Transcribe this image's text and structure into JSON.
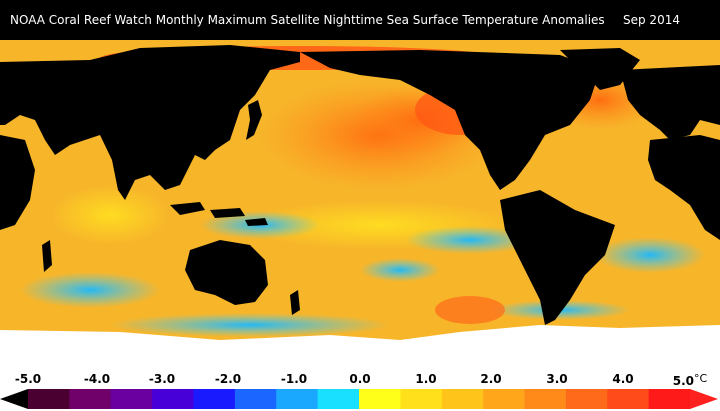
{
  "header": {
    "title": "NOAA Coral Reef Watch Monthly Maximum Satellite Nighttime Sea Surface Temperature Anomalies",
    "date": "Sep 2014"
  },
  "colorbar": {
    "ticks": [
      "-5.0",
      "-4.0",
      "-3.0",
      "-2.0",
      "-1.0",
      "0.0",
      "1.0",
      "2.0",
      "3.0",
      "4.0",
      "5.0"
    ],
    "unit": "°C",
    "range": [
      -5.0,
      5.0
    ],
    "colors": [
      "#4a0030",
      "#70006a",
      "#6a00a0",
      "#4800d8",
      "#1a1aff",
      "#1a66ff",
      "#1aa8ff",
      "#1ae0ff",
      "#ffff1a",
      "#ffe01a",
      "#ffc41a",
      "#ffa61a",
      "#ff8a1a",
      "#ff6a1a",
      "#ff4a1a",
      "#ff1a1a"
    ],
    "left_extension_color": "#000000",
    "right_extension_color": "#ff2020"
  },
  "map": {
    "land_color": "#000000",
    "sea_ice_color": "#ffffff",
    "background_ocean_color": "#f7b52a"
  }
}
